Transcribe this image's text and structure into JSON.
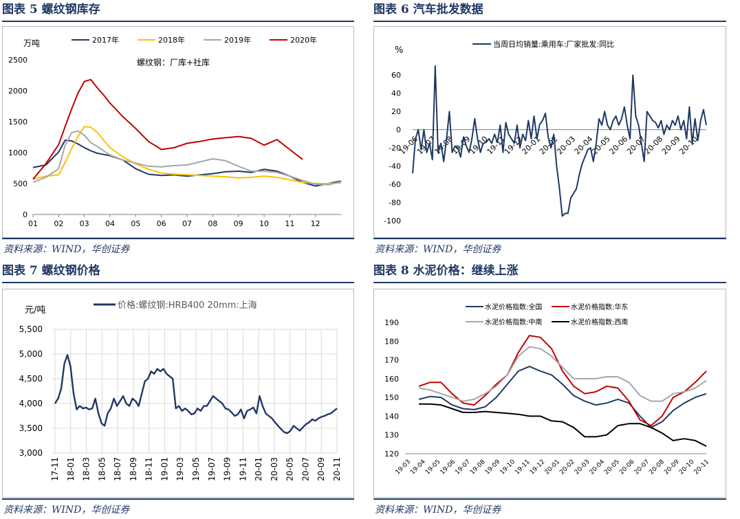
{
  "panels": [
    {
      "title": "图表 5   螺纹钢库存",
      "source": "资料来源：WIND，华创证券",
      "chart_data": {
        "type": "line",
        "ylabel": "万吨",
        "annotation": "螺纹钢：厂库+社库",
        "x": [
          1,
          1.5,
          2,
          2.25,
          2.5,
          2.75,
          3,
          3.25,
          3.5,
          3.75,
          4,
          4.5,
          5,
          5.5,
          6,
          6.5,
          7,
          7.5,
          8,
          8.5,
          9,
          9.5,
          10,
          10.5,
          11,
          11.5,
          12,
          12.5,
          13
        ],
        "xticks": [
          "01",
          "02",
          "03",
          "04",
          "05",
          "06",
          "07",
          "08",
          "09",
          "10",
          "11",
          "12"
        ],
        "ylim": [
          0,
          2500
        ],
        "yticks": [
          0,
          500,
          1000,
          1500,
          2000,
          2500
        ],
        "series": [
          {
            "name": "2017年",
            "color": "#1f3864",
            "values": [
              760,
              800,
              1010,
              1200,
              1190,
              1140,
              1080,
              1030,
              990,
              970,
              950,
              880,
              740,
              650,
              630,
              640,
              620,
              640,
              660,
              690,
              700,
              680,
              730,
              700,
              620,
              520,
              460,
              500,
              540
            ]
          },
          {
            "name": "2018年",
            "color": "#ffc000",
            "values": [
              570,
              620,
              640,
              840,
              1060,
              1260,
              1420,
              1410,
              1330,
              1200,
              1080,
              930,
              820,
              730,
              670,
              650,
              640,
              630,
              620,
              610,
              590,
              600,
              620,
              600,
              560,
              520,
              500,
              500,
              510
            ]
          },
          {
            "name": "2019年",
            "color": "#a6a6a6",
            "values": [
              520,
              600,
              740,
              1120,
              1320,
              1350,
              1280,
              1160,
              1100,
              1030,
              960,
              880,
              830,
              780,
              770,
              790,
              800,
              850,
              900,
              870,
              780,
              700,
              700,
              680,
              620,
              550,
              490,
              480,
              530
            ]
          },
          {
            "name": "2020年",
            "color": "#c00000",
            "values": [
              570,
              820,
              1130,
              1420,
              1700,
              1960,
              2150,
              2180,
              2050,
              1930,
              1800,
              1580,
              1390,
              1180,
              1050,
              1080,
              1150,
              1180,
              1220,
              1240,
              1260,
              1230,
              1120,
              1210,
              1050,
              890,
              null,
              null,
              null
            ]
          }
        ]
      }
    },
    {
      "title": "图表 6   汽车批发数据",
      "source": "资料来源：WIND，华创证券",
      "chart_data": {
        "type": "line",
        "ylabel": "%",
        "ylim": [
          -100,
          70
        ],
        "yticks": [
          -100,
          -80,
          -60,
          -40,
          -20,
          0,
          20,
          40,
          60
        ],
        "xticks": [
          "19-06",
          "19-07",
          "19-08",
          "19-09",
          "19-10",
          "19-11",
          "19-12",
          "20-01",
          "20-02",
          "20-03",
          "20-04",
          "20-05",
          "20-06",
          "20-07",
          "20-08",
          "20-09",
          "20-10"
        ],
        "series": [
          {
            "name": "当周日均销量:乘用车:厂家批发:同比",
            "color": "#1f3864",
            "values": [
              -48,
              -10,
              0,
              -22,
              0,
              -25,
              -15,
              -33,
              70,
              -25,
              -15,
              -35,
              -10,
              20,
              -25,
              -18,
              -20,
              -30,
              -8,
              -18,
              -25,
              -10,
              12,
              -10,
              -25,
              -15,
              -14,
              -10,
              -15,
              -5,
              -14,
              5,
              -25,
              8,
              -5,
              -10,
              -15,
              5,
              -20,
              -5,
              -12,
              10,
              -10,
              15,
              -10,
              6,
              10,
              18,
              -8,
              -20,
              -5,
              -40,
              -65,
              -95,
              -92,
              -92,
              -75,
              -70,
              -65,
              -50,
              -38,
              -30,
              -22,
              -20,
              -35,
              -15,
              12,
              5,
              20,
              5,
              0,
              10,
              15,
              5,
              12,
              25,
              5,
              -10,
              60,
              15,
              5,
              -15,
              -35,
              20,
              15,
              10,
              8,
              2,
              10,
              -5,
              5,
              0,
              10,
              5,
              15,
              0,
              10,
              -10,
              25,
              -15,
              12,
              -12,
              10,
              22,
              5
            ]
          }
        ]
      }
    },
    {
      "title": "图表 7   螺纹钢价格",
      "source": "资料来源：WIND，华创证券",
      "chart_data": {
        "type": "line",
        "ylabel": "元/吨",
        "ylim": [
          3000,
          5500
        ],
        "yticks": [
          3000,
          3500,
          4000,
          4500,
          5000,
          5500
        ],
        "ytick_labels": [
          "3,000",
          "3,500",
          "4,000",
          "4,500",
          "5,000",
          "5,500"
        ],
        "xticks": [
          "17-11",
          "18-01",
          "18-03",
          "18-05",
          "18-07",
          "18-09",
          "18-11",
          "19-01",
          "19-03",
          "19-05",
          "19-07",
          "19-09",
          "19-11",
          "20-01",
          "20-03",
          "20-05",
          "20-07",
          "20-09",
          "20-11"
        ],
        "series": [
          {
            "name": "价格:螺纹钢:HRB400 20mm:上海",
            "color": "#1f3864",
            "values": [
              4000,
              4100,
              4300,
              4800,
              4980,
              4750,
              4200,
              3880,
              3950,
              3900,
              3920,
              3880,
              3900,
              4100,
              3800,
              3600,
              3550,
              3800,
              3900,
              4100,
              3950,
              4050,
              4150,
              4000,
              3950,
              4100,
              4050,
              3950,
              4200,
              4450,
              4500,
              4650,
              4600,
              4700,
              4650,
              4700,
              4600,
              4550,
              4500,
              3900,
              3950,
              3850,
              3900,
              3850,
              3780,
              3800,
              3900,
              3850,
              3950,
              3950,
              4050,
              4150,
              4100,
              4050,
              4000,
              3900,
              3880,
              3820,
              3750,
              3780,
              3880,
              3700,
              3850,
              3880,
              3920,
              3800,
              4150,
              3950,
              3800,
              3750,
              3700,
              3620,
              3550,
              3480,
              3420,
              3400,
              3450,
              3550,
              3500,
              3450,
              3520,
              3580,
              3620,
              3680,
              3650,
              3700,
              3730,
              3750,
              3780,
              3800,
              3850,
              3900
            ]
          }
        ]
      }
    },
    {
      "title": "图表 8   水泥价格：继续上涨",
      "source": "资料来源：WIND，华创证券",
      "chart_data": {
        "type": "line",
        "ylim": [
          120,
          190
        ],
        "yticks": [
          120,
          130,
          140,
          150,
          160,
          170,
          180,
          190
        ],
        "xticks": [
          "19-03",
          "19-04",
          "19-05",
          "19-06",
          "19-07",
          "19-08",
          "19-09",
          "19-10",
          "19-11",
          "19-12",
          "20-01",
          "20-02",
          "20-03",
          "20-04",
          "20-05",
          "20-06",
          "20-07",
          "20-08",
          "20-09",
          "20-10",
          "20-11"
        ],
        "series": [
          {
            "name": "水泥价格指数:全国",
            "color": "#1f3864",
            "values": [
              null,
              149,
              150.5,
              150,
              146,
              144,
              143.5,
              145,
              150,
              157,
              164,
              166.5,
              164,
              162,
              157,
              151,
              148,
              146,
              147,
              149,
              147,
              140,
              134,
              137,
              143,
              147,
              150,
              152
            ]
          },
          {
            "name": "水泥价格指数:华东",
            "color": "#c00000",
            "values": [
              null,
              156,
              158,
              158,
              152,
              147,
              146,
              151,
              157,
              162,
              174,
              183,
              182,
              176,
              164,
              156,
              152,
              153,
              156,
              155,
              148,
              138,
              135,
              140,
              150,
              153,
              158,
              164
            ]
          },
          {
            "name": "水泥价格指数:中南",
            "color": "#a6a6a6",
            "values": [
              null,
              155,
              154,
              152,
              150,
              148,
              149,
              152,
              156,
              162,
              172,
              177,
              176,
              172,
              166,
              160,
              160,
              160,
              161,
              161,
              158,
              151,
              148,
              148,
              152,
              153,
              155,
              159
            ]
          },
          {
            "name": "水泥价格指数:西南",
            "color": "#000000",
            "values": [
              null,
              146.5,
              146.5,
              146,
              144,
              142,
              142,
              142.5,
              142,
              141.5,
              141,
              140,
              140,
              137.5,
              137,
              134,
              129,
              129,
              130,
              135,
              136,
              136,
              134,
              131,
              127,
              128,
              127,
              124
            ]
          }
        ]
      }
    }
  ]
}
